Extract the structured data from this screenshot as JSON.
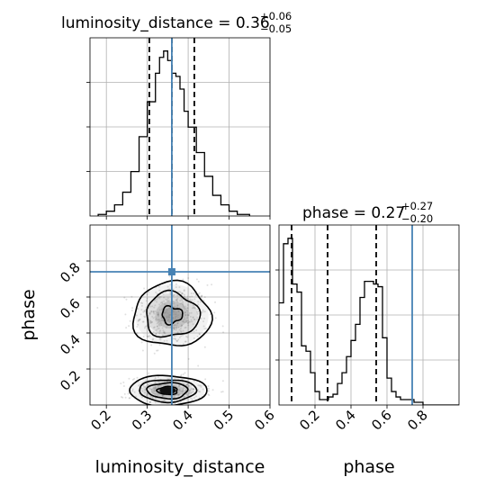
{
  "chart_data": {
    "type": "corner",
    "parameters": [
      "luminosity_distance",
      "phase"
    ],
    "truths": {
      "luminosity_distance": 0.36,
      "phase": 0.74
    },
    "grid": true,
    "panels": [
      {
        "id": "luminosity_distance_hist",
        "type": "histogram",
        "title_base": "luminosity_distance = 0.36",
        "title_sup": "+0.06",
        "title_sub": "−0.05",
        "xlim": [
          0.16,
          0.6
        ],
        "bin_edges": [
          0.18,
          0.2,
          0.22,
          0.24,
          0.26,
          0.28,
          0.3,
          0.32,
          0.33,
          0.34,
          0.35,
          0.36,
          0.37,
          0.38,
          0.39,
          0.4,
          0.42,
          0.44,
          0.46,
          0.48,
          0.5,
          0.52,
          0.55
        ],
        "counts": [
          1,
          3,
          7,
          15,
          28,
          50,
          72,
          90,
          100,
          104,
          98,
          90,
          88,
          80,
          66,
          56,
          40,
          25,
          13,
          7,
          3,
          1
        ],
        "quantiles": [
          0.305,
          0.36,
          0.415
        ],
        "truth": 0.36
      },
      {
        "id": "phase_hist",
        "type": "histogram",
        "title_base": "phase = 0.27",
        "title_sup": "+0.27",
        "title_sub": "−0.20",
        "xlim": [
          0.0,
          1.0
        ],
        "bin_edges": [
          0.0,
          0.025,
          0.05,
          0.075,
          0.1,
          0.125,
          0.15,
          0.175,
          0.2,
          0.225,
          0.25,
          0.275,
          0.3,
          0.325,
          0.35,
          0.375,
          0.4,
          0.425,
          0.45,
          0.475,
          0.5,
          0.525,
          0.55,
          0.575,
          0.6,
          0.625,
          0.65,
          0.675,
          0.7,
          0.75,
          0.8,
          0.85,
          0.9,
          1.0
        ],
        "counts": [
          38,
          60,
          62,
          45,
          42,
          22,
          20,
          12,
          5,
          2,
          2,
          3,
          4,
          8,
          12,
          18,
          24,
          30,
          40,
          46,
          46,
          45,
          44,
          25,
          10,
          5,
          3,
          2,
          2,
          1,
          0,
          0,
          0
        ],
        "quantiles": [
          0.07,
          0.27,
          0.54
        ],
        "truth": 0.74
      },
      {
        "id": "joint",
        "type": "2d-density",
        "xlim": [
          0.16,
          0.6
        ],
        "ylim": [
          0.0,
          1.0
        ],
        "clusters": [
          {
            "x": 0.36,
            "y": 0.5,
            "sx": 0.045,
            "sy": 0.085,
            "weight": 0.55
          },
          {
            "x": 0.35,
            "y": 0.08,
            "sx": 0.045,
            "sy": 0.04,
            "weight": 0.45
          }
        ],
        "truth": [
          0.36,
          0.74
        ]
      }
    ],
    "ticks": {
      "luminosity_distance": [
        {
          "value": 0.2,
          "label": "0.2"
        },
        {
          "value": 0.3,
          "label": "0.3"
        },
        {
          "value": 0.4,
          "label": "0.4"
        },
        {
          "value": 0.5,
          "label": "0.5"
        },
        {
          "value": 0.6,
          "label": "0.6"
        }
      ],
      "phase_y": [
        {
          "value": 0.2,
          "label": "0.2"
        },
        {
          "value": 0.4,
          "label": "0.4"
        },
        {
          "value": 0.6,
          "label": "0.6"
        },
        {
          "value": 0.8,
          "label": "0.8"
        }
      ],
      "phase_x": [
        {
          "value": 0.2,
          "label": "0.2"
        },
        {
          "value": 0.4,
          "label": "0.4"
        },
        {
          "value": 0.6,
          "label": "0.6"
        },
        {
          "value": 0.8,
          "label": "0.8"
        }
      ]
    },
    "axis_labels": {
      "luminosity_distance_x": "luminosity_distance",
      "phase_x": "phase",
      "phase_y": "phase"
    },
    "colors": {
      "truth": "#4682b4",
      "hist": "#000000",
      "grid": "#b0b0b0",
      "contour": "#000000"
    }
  }
}
